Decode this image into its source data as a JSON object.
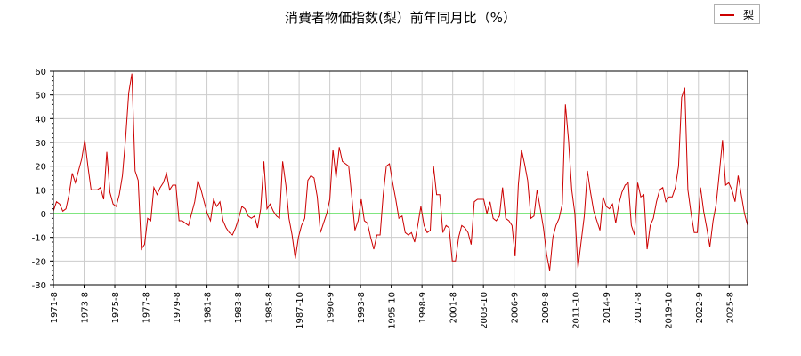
{
  "chart_data": {
    "type": "line",
    "title": "消費者物価指数(梨）前年同月比（%）",
    "legend_position": "top-right",
    "grid": true,
    "ylim": [
      -30,
      60
    ],
    "yticks": [
      -30,
      -20,
      -10,
      0,
      10,
      20,
      30,
      40,
      50,
      60
    ],
    "xlim": [
      "1971-08",
      "1971-08"
    ],
    "xticks": [
      "1971-8",
      "1973-8",
      "1975-8",
      "1977-8",
      "1979-8",
      "1981-8",
      "1983-8",
      "1985-8",
      "1987-10",
      "1990-9",
      "1993-8",
      "1995-10",
      "1998-9",
      "2001-8",
      "2003-10",
      "2006-9",
      "2009-8",
      "2011-10",
      "2014-9",
      "2017-8",
      "2019-10",
      "2022-9",
      "2025-8"
    ],
    "zero_line_color": "#00cc00",
    "series": [
      {
        "name": "梨",
        "color": "#cc0000",
        "values": [
          1,
          5,
          4,
          1,
          2,
          8,
          17,
          13,
          18,
          23,
          31,
          20,
          10,
          10,
          10,
          11,
          6,
          26,
          9,
          4,
          3,
          8,
          16,
          32,
          51,
          59,
          18,
          14,
          -15,
          -13,
          -2,
          -3,
          11,
          8,
          11,
          13,
          17,
          10,
          12,
          12,
          -3,
          -3,
          -4,
          -5,
          0,
          5,
          14,
          10,
          5,
          0,
          -3,
          6,
          3,
          5,
          -3,
          -6,
          -8,
          -9,
          -6,
          -2,
          3,
          2,
          -1,
          -2,
          -1,
          -6,
          2,
          22,
          2,
          4,
          1,
          -1,
          -2,
          22,
          12,
          -2,
          -9,
          -19,
          -10,
          -5,
          -2,
          14,
          16,
          15,
          7,
          -8,
          -4,
          0,
          6,
          27,
          15,
          28,
          22,
          21,
          20,
          7,
          -7,
          -3,
          6,
          -3,
          -4,
          -10,
          -15,
          -9,
          -9,
          8,
          20,
          21,
          13,
          6,
          -2,
          -1,
          -8,
          -9,
          -8,
          -12,
          -5,
          3,
          -5,
          -8,
          -7,
          20,
          8,
          8,
          -8,
          -5,
          -6,
          -20,
          -20,
          -10,
          -5,
          -6,
          -8,
          -13,
          5,
          6,
          6,
          6,
          0,
          5,
          -2,
          -3,
          -1,
          11,
          -2,
          -3,
          -5,
          -18,
          12,
          27,
          21,
          14,
          -2,
          -1,
          10,
          2,
          -6,
          -17,
          -24,
          -10,
          -5,
          -2,
          4,
          46,
          31,
          10,
          0,
          -23,
          -12,
          -1,
          18,
          9,
          1,
          -3,
          -7,
          7,
          3,
          2,
          4,
          -4,
          4,
          9,
          12,
          13,
          -5,
          -9,
          13,
          7,
          8,
          -15,
          -5,
          -2,
          5,
          10,
          11,
          5,
          7,
          7,
          11,
          20,
          49,
          53,
          10,
          0,
          -8,
          -8,
          11,
          1,
          -6,
          -14,
          -3,
          4,
          17,
          31,
          12,
          13,
          10,
          5,
          16,
          8,
          0,
          -5
        ]
      }
    ]
  }
}
